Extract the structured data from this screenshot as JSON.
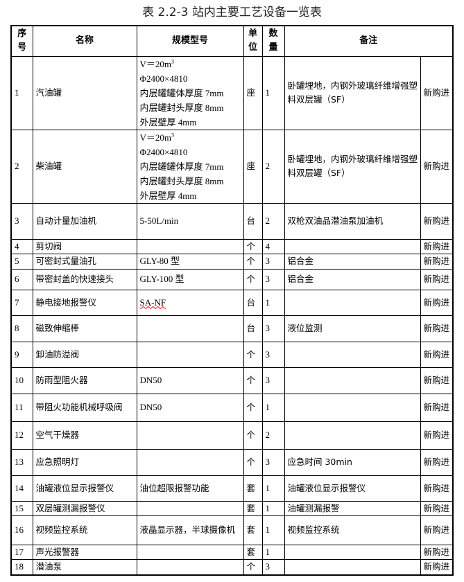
{
  "title": "表 2.2-3 站内主要工艺设备一览表",
  "headers": {
    "no": [
      "序",
      "号"
    ],
    "name": "名称",
    "spec": "规模型号",
    "unit": [
      "单",
      "位"
    ],
    "qty": [
      "数",
      "量"
    ],
    "remark": "备注"
  },
  "rows": [
    {
      "no": "1",
      "name": "汽油罐",
      "spec": [
        "V＝20m",
        "3",
        "Φ2400×4810",
        "内层罐罐体厚度 7mm",
        "内层罐封头厚度 8mm",
        "外层壁厚 4mm"
      ],
      "unit": "座",
      "qty": "1",
      "remark": "卧罐埋地，内钢外玻璃纤维增强塑料双层罐（SF）",
      "status": "新购进"
    },
    {
      "no": "2",
      "name": "柴油罐",
      "spec": [
        "V＝20m",
        "3",
        "Φ2400×4810",
        "内层罐罐体厚度 7mm",
        "内层罐封头厚度 8mm",
        "外层壁厚 4mm"
      ],
      "unit": "座",
      "qty": "2",
      "remark": "卧罐埋地，内钢外玻璃纤维增强塑料双层罐（SF）",
      "status": "新购进"
    },
    {
      "no": "3",
      "name": "自动计量加油机",
      "spec": "5-50L/min",
      "unit": "台",
      "qty": "2",
      "remark": "双枪双油品潜油泵加油机",
      "status": "新购进"
    },
    {
      "no": "4",
      "name": "剪切阀",
      "spec": "",
      "unit": "个",
      "qty": "4",
      "remark": "",
      "status": "新购进"
    },
    {
      "no": "5",
      "name": "可密封式量油孔",
      "spec": "GLY-80 型",
      "unit": "个",
      "qty": "3",
      "remark": "铝合金",
      "status": "新购进"
    },
    {
      "no": "6",
      "name": "带密封盖的快速接头",
      "spec": "GLY-100 型",
      "unit": "个",
      "qty": "3",
      "remark": "铝合金",
      "status": "新购进"
    },
    {
      "no": "7",
      "name": "静电接地报警仪",
      "spec": "SA-NF",
      "unit": "台",
      "qty": "1",
      "remark": "",
      "status": "新购进"
    },
    {
      "no": "8",
      "name": "磁致伸缩棒",
      "spec": "",
      "unit": "台",
      "qty": "3",
      "remark": "液位监测",
      "status": "新购进"
    },
    {
      "no": "9",
      "name": "卸油防溢阀",
      "spec": "",
      "unit": "个",
      "qty": "3",
      "remark": "",
      "status": "新购进"
    },
    {
      "no": "10",
      "name": "防雨型阻火器",
      "spec": "DN50",
      "unit": "个",
      "qty": "3",
      "remark": "",
      "status": "新购进"
    },
    {
      "no": "11",
      "name": "带阻火功能机械呼吸阀",
      "spec": "DN50",
      "unit": "个",
      "qty": "1",
      "remark": "",
      "status": "新购进"
    },
    {
      "no": "12",
      "name": "空气干燥器",
      "spec": "",
      "unit": "个",
      "qty": "2",
      "remark": "",
      "status": "新购进"
    },
    {
      "no": "13",
      "name": "应急照明灯",
      "spec": "",
      "unit": "个",
      "qty": "3",
      "remark": "应急时间 30min",
      "status": "新购进"
    },
    {
      "no": "14",
      "name": "油罐液位显示报警仪",
      "spec": "油位超限报警功能",
      "unit": "套",
      "qty": "1",
      "remark": "油罐液位显示报警仪",
      "status": "新购进"
    },
    {
      "no": "15",
      "name": "双层罐测漏报警仪",
      "spec": "",
      "unit": "套",
      "qty": "1",
      "remark": "油罐测漏报警",
      "status": "新购进"
    },
    {
      "no": "16",
      "name": "视频监控系统",
      "spec": "液晶显示器，半球摄像机",
      "unit": "套",
      "qty": "1",
      "remark": "视频监控系统",
      "status": "新购进"
    },
    {
      "no": "17",
      "name": "声光报警器",
      "spec": "",
      "unit": "套",
      "qty": "1",
      "remark": "",
      "status": "新购进"
    },
    {
      "no": "18",
      "name": "潜油泵",
      "spec": "",
      "unit": "个",
      "qty": "3",
      "remark": "",
      "status": "新购进"
    }
  ]
}
